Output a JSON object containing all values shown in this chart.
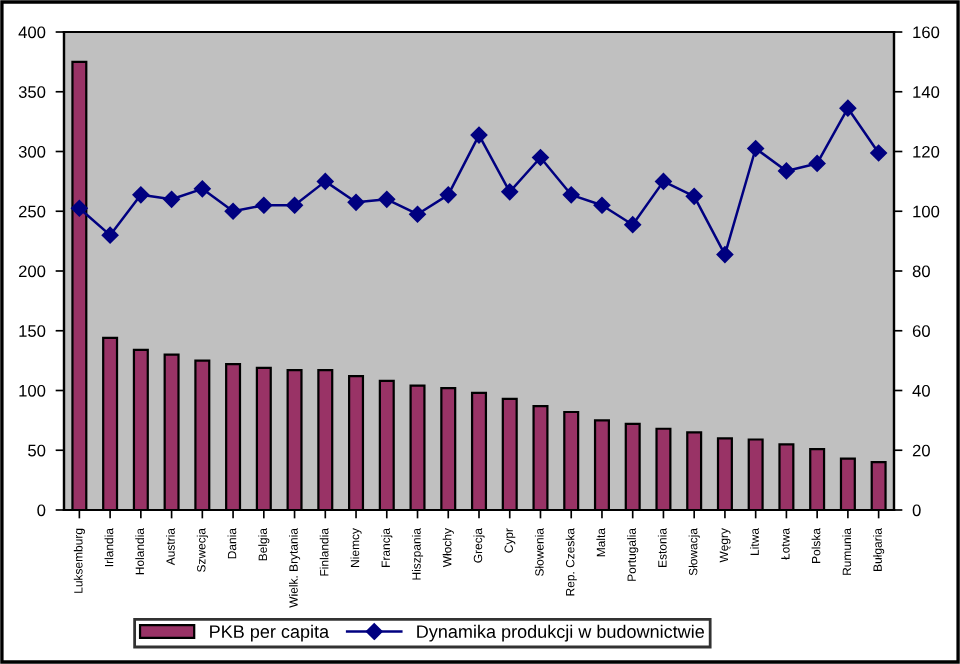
{
  "chart_data": {
    "type": "bar",
    "categories": [
      "Luksemburg",
      "Irlandia",
      "Holandia",
      "Austria",
      "Szwecja",
      "Dania",
      "Belgia",
      "Wielk. Brytania",
      "Finlandia",
      "Niemcy",
      "Francja",
      "Hiszpania",
      "Włochy",
      "Grecja",
      "Cypr",
      "Słowenia",
      "Rep. Czeska",
      "Malta",
      "Portugalia",
      "Estonia",
      "Słowacja",
      "Węgry",
      "Litwa",
      "Łotwa",
      "Polska",
      "Rumunia",
      "Bułgaria"
    ],
    "series": [
      {
        "name": "PKB per capita",
        "color": "#993366",
        "values": [
          375,
          144,
          134,
          130,
          125,
          122,
          119,
          117,
          117,
          112,
          108,
          104,
          102,
          98,
          93,
          87,
          82,
          75,
          72,
          68,
          65,
          60,
          59,
          55,
          51,
          43,
          40
        ]
      },
      {
        "name": "Dynamika produkcji w budownictwie",
        "color": "#000080",
        "type": "line",
        "axis": "y2",
        "marker": "diamond",
        "values": [
          101,
          92,
          105.5,
          104,
          107.5,
          100,
          102,
          102,
          110,
          103,
          104,
          99,
          105.5,
          125.5,
          106.5,
          118,
          105.5,
          102,
          95.5,
          110,
          105,
          85.5,
          121,
          113.5,
          116,
          134.5,
          119.5
        ]
      }
    ],
    "ylim": [
      0,
      400
    ],
    "yticks": [
      0,
      50,
      100,
      150,
      200,
      250,
      300,
      350,
      400
    ],
    "y2lim": [
      0,
      160
    ],
    "y2ticks": [
      0,
      20,
      40,
      60,
      80,
      100,
      120,
      140,
      160
    ],
    "grid": false,
    "legend": "bottom"
  }
}
